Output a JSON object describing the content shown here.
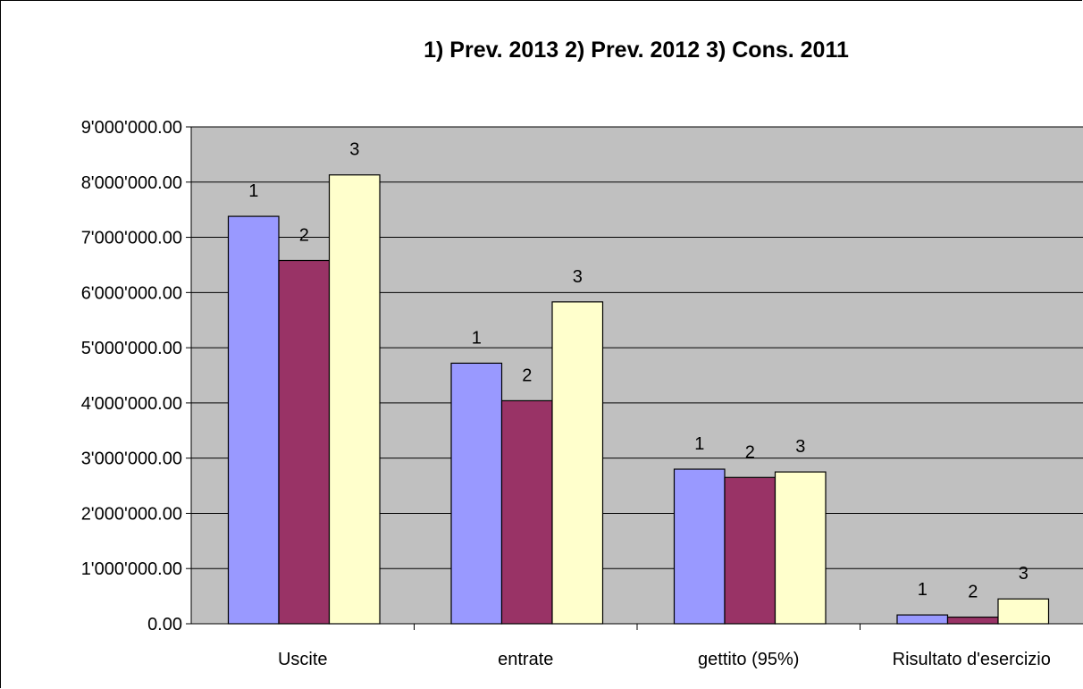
{
  "chart_data": {
    "type": "bar",
    "title": "1) Prev. 2013  2) Prev. 2012  3) Cons. 2011",
    "xlabel": "",
    "ylabel": "",
    "categories": [
      "Uscite",
      "entrate",
      "gettito (95%)",
      "Risultato d'esercizio"
    ],
    "series": [
      {
        "label": "1",
        "color": "#9999ff",
        "values": [
          7380000,
          4720000,
          2800000,
          160000
        ]
      },
      {
        "label": "2",
        "color": "#993366",
        "values": [
          6580000,
          4040000,
          2650000,
          120000
        ]
      },
      {
        "label": "3",
        "color": "#ffffcc",
        "values": [
          8130000,
          5830000,
          2750000,
          450000
        ]
      }
    ],
    "ylim": [
      0,
      9000000
    ],
    "yticks": [
      0,
      1000000,
      2000000,
      3000000,
      4000000,
      5000000,
      6000000,
      7000000,
      8000000,
      9000000
    ],
    "ytick_labels": [
      "0.00",
      "1'000'000.00",
      "2'000'000.00",
      "3'000'000.00",
      "4'000'000.00",
      "5'000'000.00",
      "6'000'000.00",
      "7'000'000.00",
      "8'000'000.00",
      "9'000'000.00"
    ],
    "grid": true,
    "plot_background": "#c0c0c0",
    "legend": "none"
  }
}
